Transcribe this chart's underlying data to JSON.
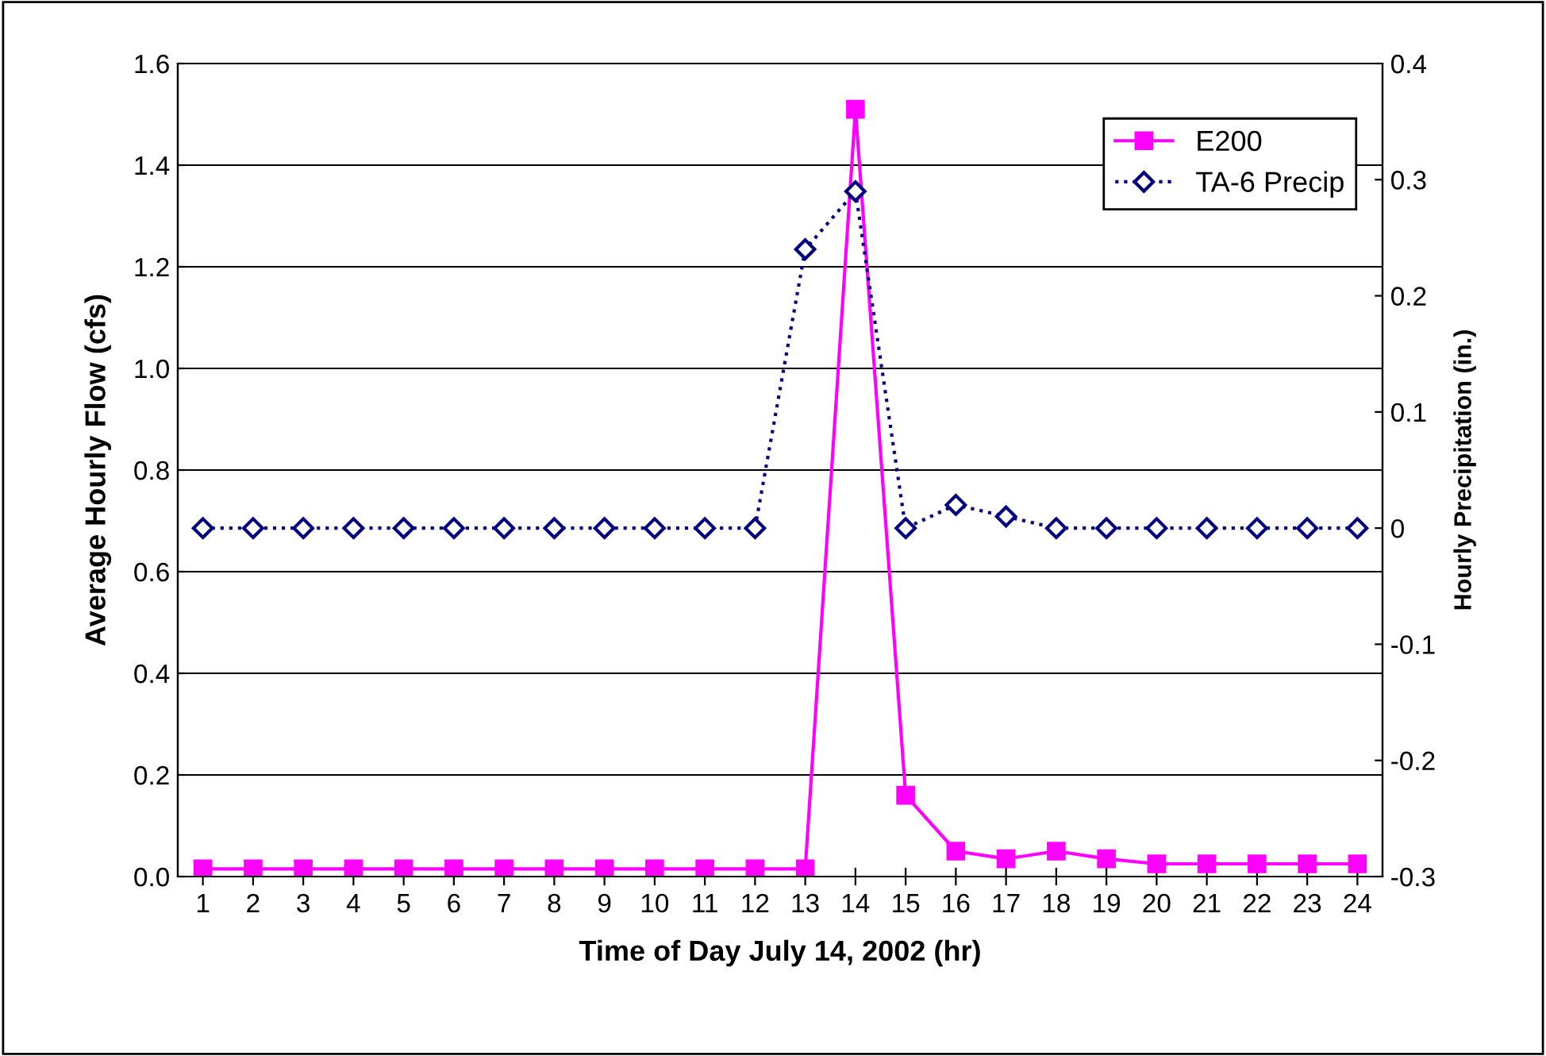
{
  "chart_data": {
    "type": "line",
    "xlabel": "Time of Day July 14, 2002 (hr)",
    "ylabel": "Average Hourly Flow (cfs)",
    "y2label": "Hourly Precipitation (in.)",
    "categories": [
      "1",
      "2",
      "3",
      "4",
      "5",
      "6",
      "7",
      "8",
      "9",
      "10",
      "11",
      "12",
      "13",
      "14",
      "15",
      "16",
      "17",
      "18",
      "19",
      "20",
      "21",
      "22",
      "23",
      "24"
    ],
    "series": [
      {
        "name": "E200",
        "color": "#ff00ff",
        "marker": "square",
        "line_style": "solid",
        "values": [
          0.015,
          0.015,
          0.015,
          0.015,
          0.015,
          0.015,
          0.015,
          0.015,
          0.015,
          0.015,
          0.015,
          0.015,
          0.015,
          1.51,
          0.16,
          0.05,
          0.035,
          0.05,
          0.035,
          0.025,
          0.025,
          0.025,
          0.025,
          0.025
        ]
      },
      {
        "name": "TA-6 Precip",
        "color": "#000080",
        "marker": "diamond",
        "line_style": "dotted",
        "axis": "y2",
        "values": [
          0,
          0,
          0,
          0,
          0,
          0,
          0,
          0,
          0,
          0,
          0,
          0,
          0.24,
          0.29,
          0,
          0.02,
          0.01,
          0,
          0,
          0,
          0,
          0,
          0,
          0
        ]
      }
    ],
    "ylim": [
      0,
      1.6
    ],
    "yticks": [
      {
        "value": 0,
        "label": "0.0"
      },
      {
        "value": 0.2,
        "label": "0.2"
      },
      {
        "value": 0.4,
        "label": "0.4"
      },
      {
        "value": 0.6,
        "label": "0.6"
      },
      {
        "value": 0.8,
        "label": "0.8"
      },
      {
        "value": 1.0,
        "label": "1.0"
      },
      {
        "value": 1.2,
        "label": "1.2"
      },
      {
        "value": 1.4,
        "label": "1.4"
      },
      {
        "value": 1.6,
        "label": "1.6"
      }
    ],
    "y2lim": [
      -0.3,
      0.4
    ],
    "y2ticks": [
      -0.3,
      -0.2,
      -0.1,
      0,
      0.1,
      0.2,
      0.3,
      0.4
    ],
    "grid": "y",
    "legend": "top right"
  }
}
